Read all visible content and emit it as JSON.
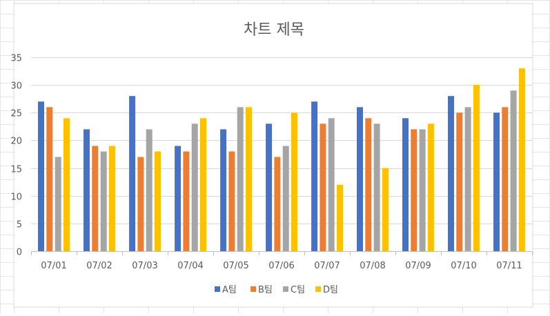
{
  "chart_data": {
    "type": "bar",
    "title": "차트 제목",
    "xlabel": "",
    "ylabel": "",
    "categories": [
      "07/01",
      "07/02",
      "07/03",
      "07/04",
      "07/05",
      "07/06",
      "07/07",
      "07/08",
      "07/09",
      "07/10",
      "07/11"
    ],
    "series": [
      {
        "name": "A팀",
        "color": "#4472C4",
        "values": [
          27,
          22,
          28,
          19,
          22,
          23,
          27,
          26,
          24,
          28,
          25
        ]
      },
      {
        "name": "B팀",
        "color": "#ED7D31",
        "values": [
          26,
          19,
          17,
          18,
          18,
          17,
          23,
          24,
          22,
          25,
          26
        ]
      },
      {
        "name": "C팀",
        "color": "#A5A5A5",
        "values": [
          17,
          18,
          22,
          23,
          26,
          19,
          24,
          23,
          22,
          26,
          29
        ]
      },
      {
        "name": "D팀",
        "color": "#FFC000",
        "values": [
          24,
          19,
          18,
          24,
          26,
          25,
          12,
          15,
          23,
          30,
          33
        ]
      }
    ],
    "ylim": [
      0,
      35
    ],
    "yticks": [
      0,
      5,
      10,
      15,
      20,
      25,
      30,
      35
    ],
    "grid": true,
    "legend_position": "bottom"
  }
}
